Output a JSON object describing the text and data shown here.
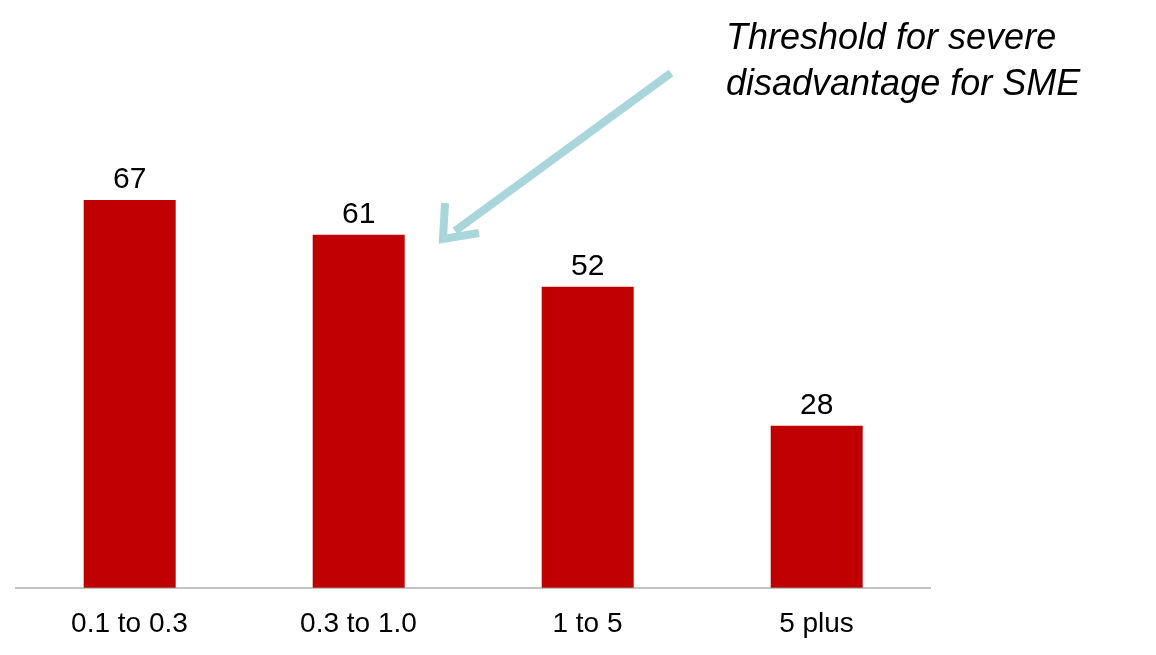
{
  "chart_data": {
    "type": "bar",
    "categories": [
      "0.1 to 0.3",
      "0.3 to 1.0",
      "1 to 5",
      "5 plus"
    ],
    "values": [
      67,
      61,
      52,
      28
    ],
    "color": "#c00000",
    "data_labels": true,
    "annotations": [
      "Threshold for severe disadvantage for SME"
    ]
  }
}
